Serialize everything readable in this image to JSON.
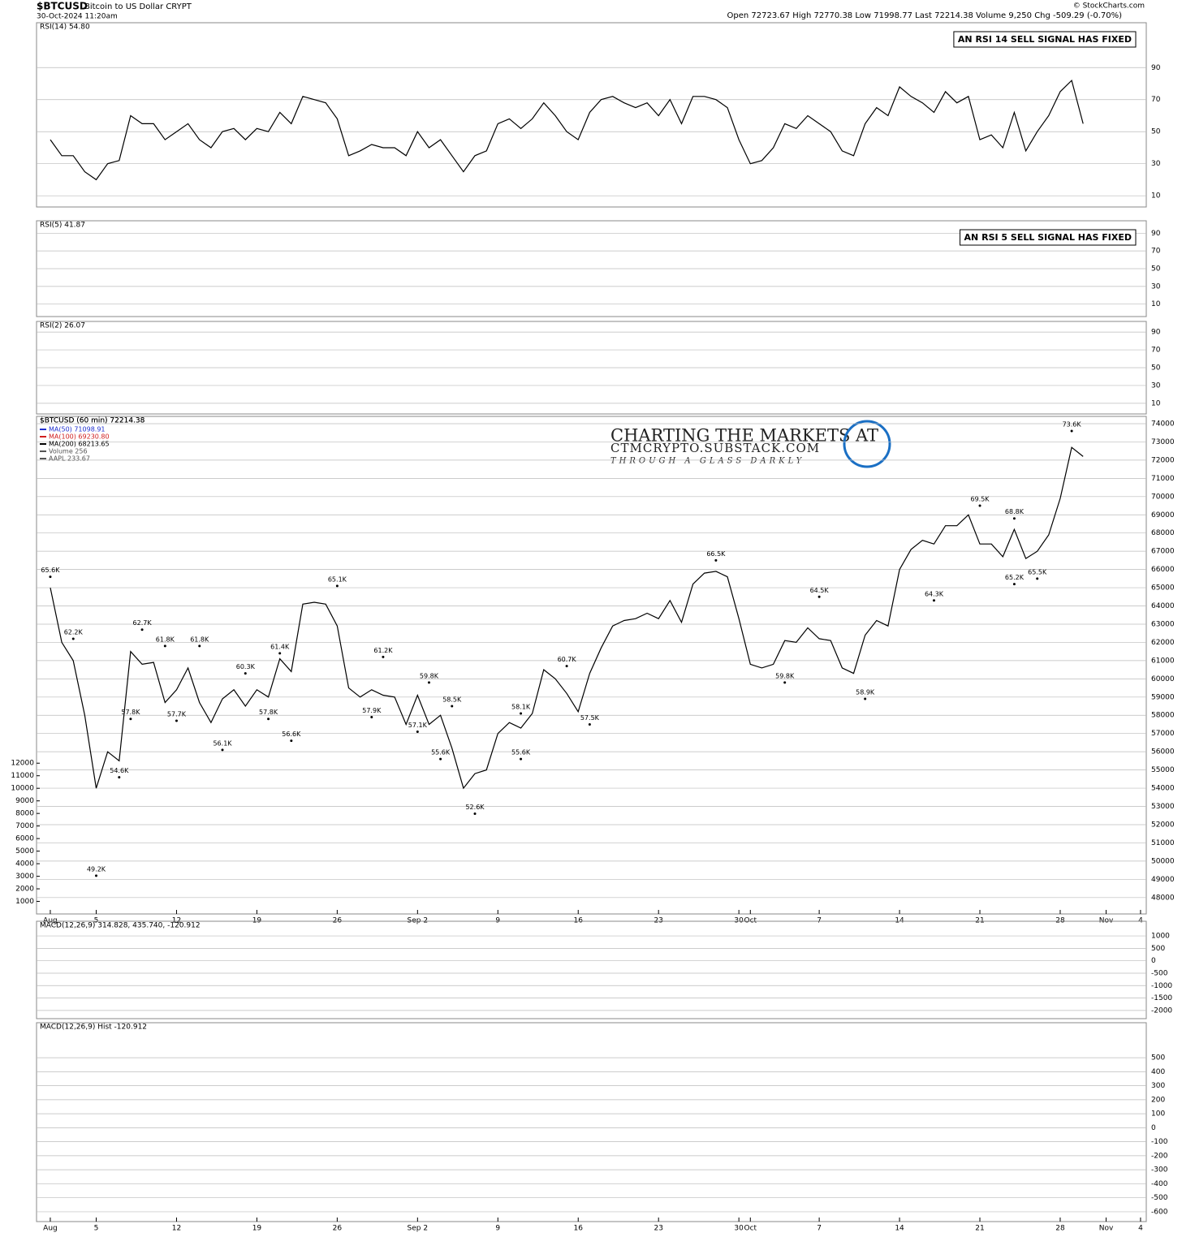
{
  "header": {
    "symbol": "$BTCUSD",
    "name": "Bitcoin to US Dollar CRYPT",
    "date": "30-Oct-2024 11:20am",
    "stats": "Open 72723.67 High 72770.38 Low 71998.77 Last 72214.38 Volume 9,250 Chg -509.29 (-0.70%)",
    "source": "© StockCharts.com",
    "watermark": [
      "CHARTING THE MARKETS AT",
      "CTMCRYPTO.SUBSTACK.COM",
      "THROUGH A GLASS DARKLY"
    ]
  },
  "chart_data": [
    {
      "type": "line",
      "title": "RSI(14) 54.80",
      "annotation": "AN RSI 14 SELL SIGNAL HAS FIXED",
      "color": "#000000",
      "ylim": [
        3,
        118
      ],
      "yticks": [
        10,
        30,
        50,
        70,
        90
      ],
      "values": [
        45,
        35,
        35,
        25,
        20,
        30,
        32,
        60,
        55,
        55,
        45,
        50,
        55,
        45,
        40,
        50,
        52,
        45,
        52,
        50,
        62,
        55,
        72,
        70,
        68,
        58,
        35,
        38,
        42,
        40,
        40,
        35,
        50,
        40,
        45,
        35,
        25,
        35,
        38,
        55,
        58,
        52,
        58,
        68,
        60,
        50,
        45,
        62,
        70,
        72,
        68,
        65,
        68,
        60,
        70,
        55,
        72,
        72,
        70,
        65,
        45,
        30,
        32,
        40,
        55,
        52,
        60,
        55,
        50,
        38,
        35,
        55,
        65,
        60,
        78,
        72,
        68,
        62,
        75,
        68,
        72,
        45,
        48,
        40,
        62,
        38,
        50,
        60,
        75,
        82,
        55
      ]
    },
    {
      "type": "line",
      "title": "RSI(5) 41.87",
      "annotation": "AN RSI 5 SELL SIGNAL HAS FIXED",
      "ylim": [
        -4,
        104
      ],
      "yticks": [
        10,
        30,
        50,
        70,
        90
      ]
    },
    {
      "type": "line",
      "title": "RSI(2) 26.07",
      "ylim": [
        -2,
        102
      ],
      "yticks": [
        10,
        30,
        50,
        70,
        90
      ]
    },
    {
      "type": "line",
      "title": "$BTCUSD (60 min) 72214.38",
      "color": "#000000",
      "legend": [
        {
          "name": "MA(50) 71098.91",
          "color": "#1f2fd0"
        },
        {
          "name": "MA(100) 69230.80",
          "color": "#d01f1f"
        },
        {
          "name": "MA(200) 68213.65",
          "color": "#000000"
        },
        {
          "name": "Volume 256",
          "color": "#555555"
        },
        {
          "name": "AAPL 233.67",
          "color": "#555555"
        }
      ],
      "xlim": [
        -1.2,
        95.5
      ],
      "xticks": [
        {
          "value": 0,
          "label": "Aug"
        },
        {
          "value": 4,
          "label": "5"
        },
        {
          "value": 11,
          "label": "12"
        },
        {
          "value": 18,
          "label": "19"
        },
        {
          "value": 25,
          "label": "26"
        },
        {
          "value": 32,
          "label": "Sep 2"
        },
        {
          "value": 39,
          "label": "9"
        },
        {
          "value": 46,
          "label": "16"
        },
        {
          "value": 53,
          "label": "23"
        },
        {
          "value": 60,
          "label": "30"
        },
        {
          "value": 61,
          "label": "Oct"
        },
        {
          "value": 67,
          "label": "7"
        },
        {
          "value": 74,
          "label": "14"
        },
        {
          "value": 81,
          "label": "21"
        },
        {
          "value": 88,
          "label": "28"
        },
        {
          "value": 92,
          "label": "Nov"
        },
        {
          "value": 95,
          "label": "4"
        }
      ],
      "ylim": [
        47100,
        74400
      ],
      "yticks": [
        48000,
        49000,
        50000,
        51000,
        52000,
        53000,
        54000,
        55000,
        56000,
        57000,
        58000,
        59000,
        60000,
        61000,
        62000,
        63000,
        64000,
        65000,
        66000,
        67000,
        68000,
        69000,
        70000,
        71000,
        72000,
        73000,
        74000
      ],
      "y2lim": [
        0,
        39600
      ],
      "y2ticks": [
        1000,
        2000,
        3000,
        4000,
        5000,
        6000,
        7000,
        8000,
        9000,
        10000,
        11000,
        12000
      ],
      "values": [
        65000,
        62000,
        61000,
        58000,
        54000,
        56000,
        55500,
        61500,
        60800,
        60900,
        58700,
        59400,
        60600,
        58700,
        57600,
        58900,
        59400,
        58500,
        59400,
        59000,
        61100,
        60400,
        64100,
        64200,
        64100,
        62900,
        59500,
        59000,
        59400,
        59100,
        59000,
        57500,
        59100,
        57500,
        58000,
        56200,
        54000,
        54800,
        55000,
        57000,
        57600,
        57300,
        58100,
        60500,
        60000,
        59200,
        58200,
        60300,
        61700,
        62900,
        63200,
        63300,
        63600,
        63300,
        64300,
        63100,
        65200,
        65800,
        65900,
        65600,
        63300,
        60800,
        60600,
        60800,
        62100,
        62000,
        62800,
        62200,
        62100,
        60600,
        60300,
        62400,
        63200,
        62900,
        66000,
        67100,
        67600,
        67400,
        68400,
        68400,
        69000,
        67400,
        67400,
        66700,
        68200,
        66600,
        67000,
        67900,
        69900,
        72700,
        72200
      ],
      "annotations": [
        {
          "label": "65.6K",
          "x": 0,
          "value": 65600
        },
        {
          "label": "62.2K",
          "x": 2,
          "value": 62200
        },
        {
          "label": "49.2K",
          "x": 4,
          "value": 49200
        },
        {
          "label": "54.6K",
          "x": 6,
          "value": 54600
        },
        {
          "label": "57.8K",
          "x": 7,
          "value": 57800
        },
        {
          "label": "62.7K",
          "x": 8,
          "value": 62700
        },
        {
          "label": "61.8K",
          "x": 10,
          "value": 61800
        },
        {
          "label": "61.8K",
          "x": 13,
          "value": 61800
        },
        {
          "label": "57.7K",
          "x": 11,
          "value": 57700
        },
        {
          "label": "56.1K",
          "x": 15,
          "value": 56100
        },
        {
          "label": "60.3K",
          "x": 17,
          "value": 60300
        },
        {
          "label": "61.4K",
          "x": 20,
          "value": 61400
        },
        {
          "label": "57.8K",
          "x": 19,
          "value": 57800
        },
        {
          "label": "56.6K",
          "x": 21,
          "value": 56600
        },
        {
          "label": "65.1K",
          "x": 25,
          "value": 65100
        },
        {
          "label": "61.2K",
          "x": 29,
          "value": 61200
        },
        {
          "label": "57.9K",
          "x": 28,
          "value": 57900
        },
        {
          "label": "57.1K",
          "x": 32,
          "value": 57100
        },
        {
          "label": "59.8K",
          "x": 33,
          "value": 59800
        },
        {
          "label": "58.5K",
          "x": 35,
          "value": 58500
        },
        {
          "label": "55.6K",
          "x": 34,
          "value": 55600
        },
        {
          "label": "52.6K",
          "x": 37,
          "value": 52600
        },
        {
          "label": "58.1K",
          "x": 41,
          "value": 58100
        },
        {
          "label": "55.6K",
          "x": 41,
          "value": 55600
        },
        {
          "label": "60.7K",
          "x": 45,
          "value": 60700
        },
        {
          "label": "57.5K",
          "x": 47,
          "value": 57500
        },
        {
          "label": "66.5K",
          "x": 58,
          "value": 66500
        },
        {
          "label": "59.8K",
          "x": 64,
          "value": 59800
        },
        {
          "label": "64.5K",
          "x": 67,
          "value": 64500
        },
        {
          "label": "58.9K",
          "x": 71,
          "value": 58900
        },
        {
          "label": "64.3K",
          "x": 77,
          "value": 64300
        },
        {
          "label": "69.5K",
          "x": 81,
          "value": 69500
        },
        {
          "label": "68.8K",
          "x": 84,
          "value": 68800
        },
        {
          "label": "65.2K",
          "x": 84,
          "value": 65200
        },
        {
          "label": "65.5K",
          "x": 86,
          "value": 65500
        },
        {
          "label": "73.6K",
          "x": 89,
          "value": 73600
        }
      ]
    },
    {
      "type": "line",
      "title": "MACD(12,26,9) 314.828, 435.740, -120.912",
      "ylim": [
        -2330,
        1590
      ],
      "yticks": [
        1000,
        500,
        0,
        -500,
        -1000,
        -1500,
        -2000
      ]
    },
    {
      "type": "bar",
      "title": "MACD(12,26,9) Hist -120.912",
      "ylim": [
        -670,
        750
      ],
      "yticks": [
        500,
        400,
        300,
        200,
        100,
        0,
        -100,
        -200,
        -300,
        -400,
        -500,
        -600
      ]
    }
  ]
}
